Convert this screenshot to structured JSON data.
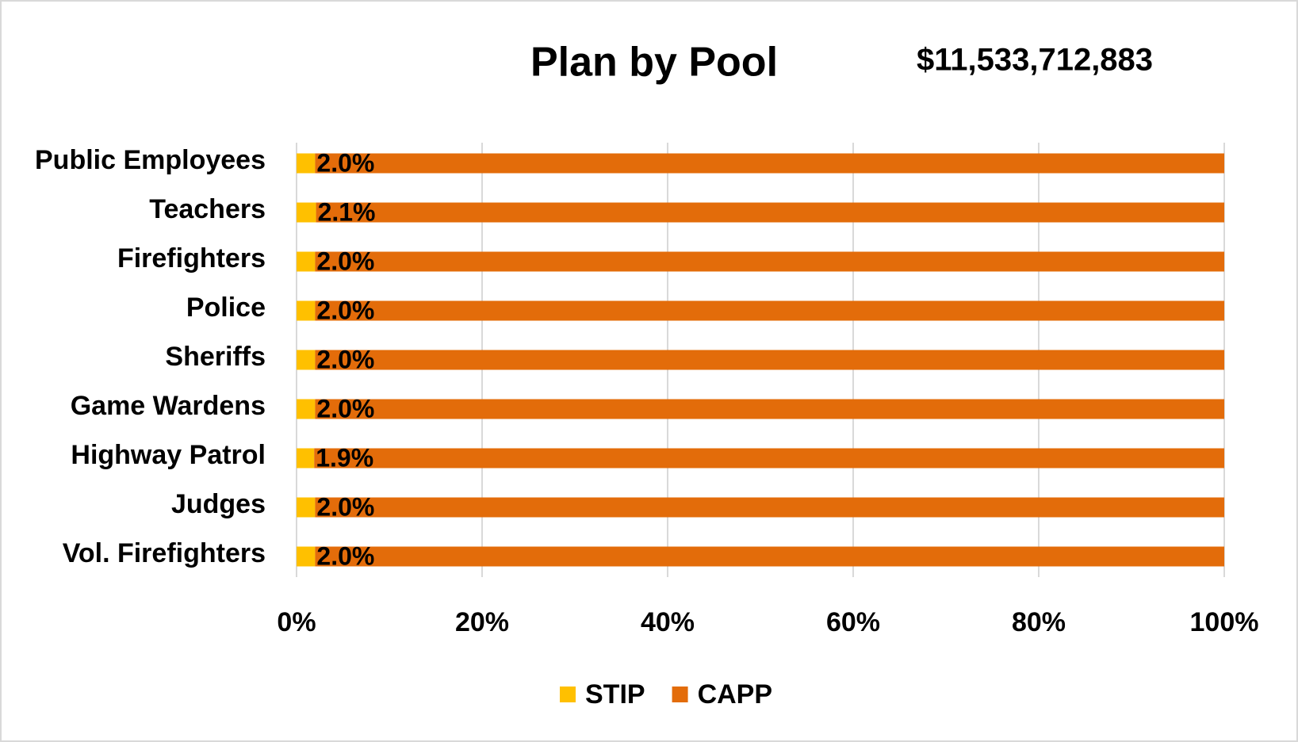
{
  "chart_data": {
    "type": "stacked_barh",
    "title": "Plan by Pool",
    "annotation": "$11,533,712,883",
    "categories": [
      "Public Employees",
      "Teachers",
      "Firefighters",
      "Police",
      "Sheriffs",
      "Game Wardens",
      "Highway Patrol",
      "Judges",
      "Vol. Firefighters"
    ],
    "series": [
      {
        "name": "STIP",
        "color": "#ffc000",
        "values": [
          2.0,
          2.1,
          2.0,
          2.0,
          2.0,
          2.0,
          1.9,
          2.0,
          2.0
        ],
        "value_labels": [
          "2.0%",
          "2.1%",
          "2.0%",
          "2.0%",
          "2.0%",
          "2.0%",
          "1.9%",
          "2.0%",
          "2.0%"
        ]
      },
      {
        "name": "CAPP",
        "color": "#e36c0a",
        "values": [
          98.0,
          97.9,
          98.0,
          98.0,
          98.0,
          98.0,
          98.1,
          98.0,
          98.0
        ]
      }
    ],
    "xlim": [
      0,
      100
    ],
    "xticks": [
      {
        "value": 0,
        "label": "0%"
      },
      {
        "value": 20,
        "label": "20%"
      },
      {
        "value": 40,
        "label": "40%"
      },
      {
        "value": 60,
        "label": "60%"
      },
      {
        "value": 80,
        "label": "80%"
      },
      {
        "value": 100,
        "label": "100%"
      }
    ],
    "grid": true,
    "legend": "bottom"
  }
}
